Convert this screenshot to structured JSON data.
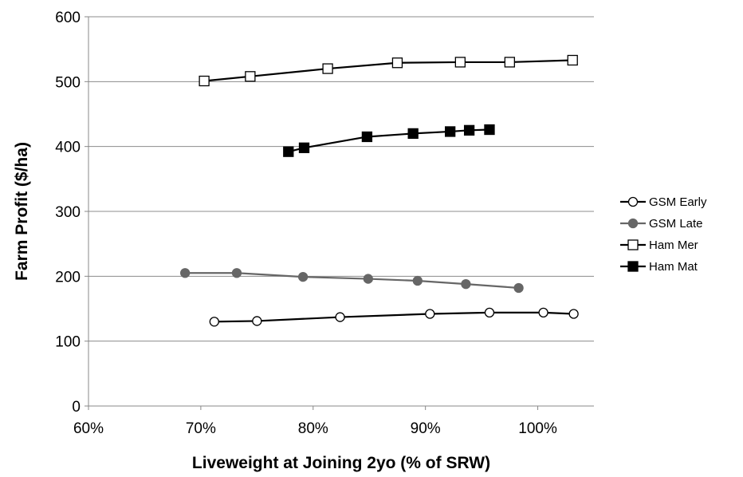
{
  "chart_data": {
    "type": "line",
    "title": "",
    "xlabel": "Liveweight at Joining 2yo (% of SRW)",
    "ylabel": "Farm Profit ($/ha)",
    "xlim": [
      60,
      105
    ],
    "ylim": [
      0,
      600
    ],
    "x_ticks": [
      60,
      70,
      80,
      90,
      100
    ],
    "x_tick_labels": [
      "60%",
      "70%",
      "80%",
      "90%",
      "100%"
    ],
    "y_ticks": [
      0,
      100,
      200,
      300,
      400,
      500,
      600
    ],
    "y_tick_labels": [
      "0",
      "100",
      "200",
      "300",
      "400",
      "500",
      "600"
    ],
    "grid": "horizontal",
    "legend_position": "right",
    "series": [
      {
        "name": "GSM Early",
        "color": "#000000",
        "marker": "circle-open",
        "x": [
          71.2,
          75.0,
          82.4,
          90.4,
          95.7,
          100.5,
          103.2
        ],
        "y": [
          130,
          131,
          137,
          142,
          144,
          144,
          142
        ]
      },
      {
        "name": "GSM Late",
        "color": "#666666",
        "marker": "circle-filled",
        "x": [
          68.6,
          73.2,
          79.1,
          84.9,
          89.3,
          93.6,
          98.3
        ],
        "y": [
          205,
          205,
          199,
          196,
          193,
          188,
          182
        ]
      },
      {
        "name": "Ham Mer",
        "color": "#000000",
        "marker": "square-open",
        "x": [
          70.3,
          74.4,
          81.3,
          87.5,
          93.1,
          97.5,
          103.1
        ],
        "y": [
          501,
          508,
          520,
          529,
          530,
          530,
          533
        ]
      },
      {
        "name": "Ham Mat",
        "color": "#000000",
        "marker": "square-filled",
        "x": [
          77.8,
          79.2,
          84.8,
          88.9,
          92.2,
          93.9,
          95.7
        ],
        "y": [
          392,
          398,
          415,
          420,
          423,
          425,
          426
        ]
      }
    ]
  }
}
